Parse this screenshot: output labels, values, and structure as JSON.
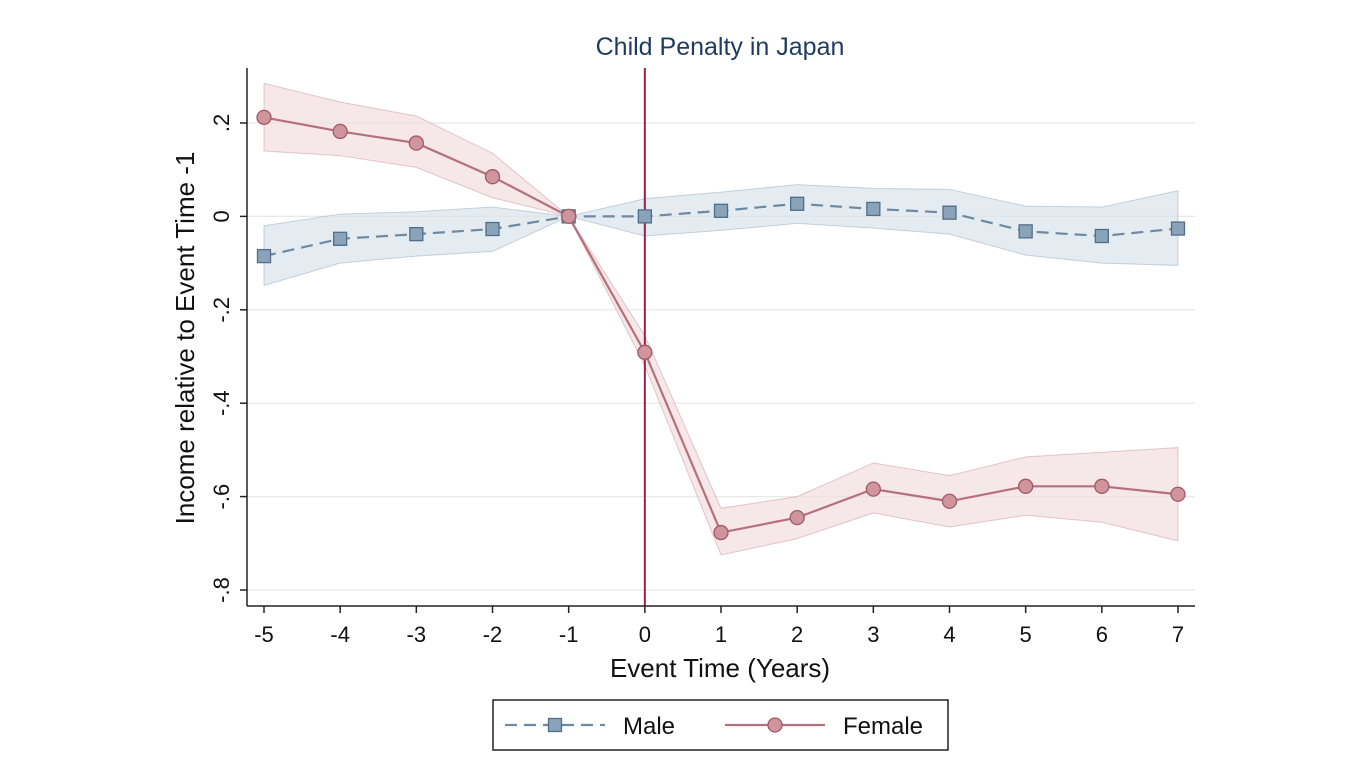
{
  "chart_data": {
    "type": "line",
    "title": "Child Penalty in Japan",
    "xlabel": "Event Time (Years)",
    "ylabel": "Income relative to Event Time -1",
    "x": [
      -5,
      -4,
      -3,
      -2,
      -1,
      0,
      1,
      2,
      3,
      4,
      5,
      6,
      7
    ],
    "xlim": [
      -5,
      7
    ],
    "ylim": [
      -0.8,
      0.2
    ],
    "xticks": [
      "-5",
      "-4",
      "-3",
      "-2",
      "-1",
      "0",
      "1",
      "2",
      "3",
      "4",
      "5",
      "6",
      "7"
    ],
    "yticks": [
      {
        "value": 0.2,
        "label": ".2"
      },
      {
        "value": 0,
        "label": "0"
      },
      {
        "value": -0.2,
        "label": "-.2"
      },
      {
        "value": -0.4,
        "label": "-.4"
      },
      {
        "value": -0.6,
        "label": "-.6"
      },
      {
        "value": -0.8,
        "label": "-.8"
      }
    ],
    "grid": true,
    "event_line_x": 0,
    "series": [
      {
        "name": "Male",
        "marker": "square",
        "line_style": "dashed",
        "color": "#6e8aa3",
        "band_color": "#dbe6ee",
        "values": [
          -0.085,
          -0.048,
          -0.038,
          -0.027,
          0.0,
          0.0,
          0.012,
          0.027,
          0.016,
          0.008,
          -0.032,
          -0.042,
          -0.026
        ],
        "lower": [
          -0.148,
          -0.1,
          -0.085,
          -0.075,
          0.0,
          -0.042,
          -0.03,
          -0.015,
          -0.025,
          -0.038,
          -0.083,
          -0.1,
          -0.105
        ],
        "upper": [
          -0.02,
          0.005,
          0.01,
          0.02,
          0.0,
          0.038,
          0.052,
          0.068,
          0.06,
          0.058,
          0.022,
          0.02,
          0.055
        ]
      },
      {
        "name": "Female",
        "marker": "circle",
        "line_style": "solid",
        "color": "#b5707c",
        "band_color": "#f3dfe2",
        "values": [
          0.212,
          0.182,
          0.157,
          0.085,
          0.0,
          -0.291,
          -0.677,
          -0.645,
          -0.584,
          -0.61,
          -0.578,
          -0.578,
          -0.595
        ],
        "lower": [
          0.14,
          0.13,
          0.105,
          0.04,
          0.0,
          -0.32,
          -0.725,
          -0.69,
          -0.635,
          -0.665,
          -0.64,
          -0.655,
          -0.695
        ],
        "upper": [
          0.285,
          0.245,
          0.215,
          0.135,
          0.0,
          -0.255,
          -0.625,
          -0.6,
          -0.528,
          -0.555,
          -0.515,
          -0.505,
          -0.495
        ]
      }
    ],
    "legend": {
      "placement": "bottom-center",
      "entries": [
        "Male",
        "Female"
      ]
    }
  },
  "colors": {
    "event_line": "#9b1f4a",
    "grid": "#e8e8e8",
    "axis": "#222222",
    "title": "#1e3a5f"
  }
}
